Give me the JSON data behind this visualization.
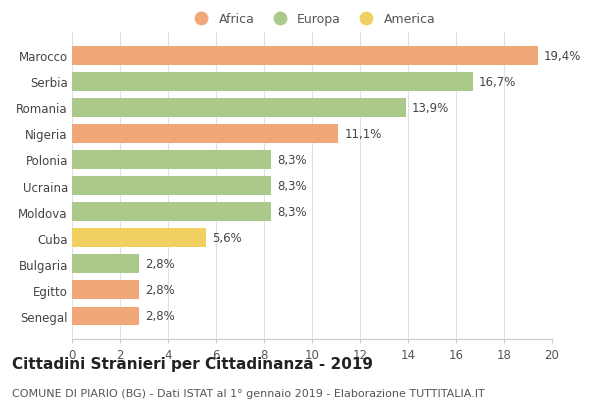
{
  "categories": [
    "Senegal",
    "Egitto",
    "Bulgaria",
    "Cuba",
    "Moldova",
    "Ucraina",
    "Polonia",
    "Nigeria",
    "Romania",
    "Serbia",
    "Marocco"
  ],
  "values": [
    2.8,
    2.8,
    2.8,
    5.6,
    8.3,
    8.3,
    8.3,
    11.1,
    13.9,
    16.7,
    19.4
  ],
  "labels": [
    "2,8%",
    "2,8%",
    "2,8%",
    "5,6%",
    "8,3%",
    "8,3%",
    "8,3%",
    "11,1%",
    "13,9%",
    "16,7%",
    "19,4%"
  ],
  "colors": [
    "#f0a878",
    "#f0a878",
    "#aac98a",
    "#f0d060",
    "#aac98a",
    "#aac98a",
    "#aac98a",
    "#f0a878",
    "#aac98a",
    "#aac98a",
    "#f0a878"
  ],
  "legend_labels": [
    "Africa",
    "Europa",
    "America"
  ],
  "legend_colors": [
    "#f0a878",
    "#aac98a",
    "#f0d060"
  ],
  "title": "Cittadini Stranieri per Cittadinanza - 2019",
  "subtitle": "COMUNE DI PIARIO (BG) - Dati ISTAT al 1° gennaio 2019 - Elaborazione TUTTITALIA.IT",
  "xlim": [
    0,
    20
  ],
  "xticks": [
    0,
    2,
    4,
    6,
    8,
    10,
    12,
    14,
    16,
    18,
    20
  ],
  "background_color": "#ffffff",
  "grid_color": "#e0e0e0",
  "bar_height": 0.72,
  "label_fontsize": 8.5,
  "title_fontsize": 11,
  "subtitle_fontsize": 8,
  "ytick_fontsize": 8.5,
  "xtick_fontsize": 8.5
}
